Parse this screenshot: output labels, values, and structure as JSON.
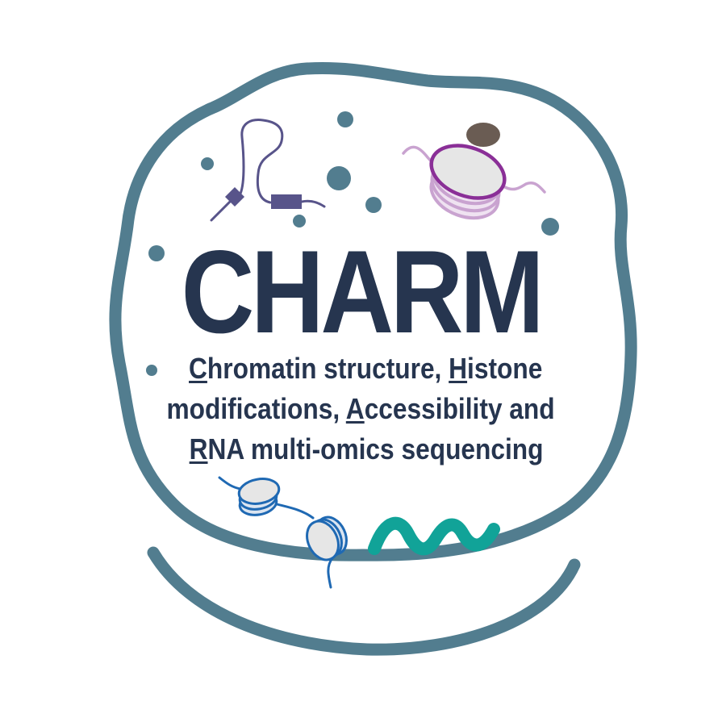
{
  "logo": {
    "title": "CHARM",
    "subtitle_lines": [
      [
        {
          "initial": "C",
          "rest": "hromatin structure, "
        },
        {
          "initial": "H",
          "rest": "istone"
        }
      ],
      [
        {
          "plain": "modifications, "
        },
        {
          "initial": "A",
          "rest": "ccessibility and"
        }
      ],
      [
        {
          "initial": "R",
          "rest": "NA multi-omics sequencing"
        }
      ]
    ]
  },
  "colors": {
    "nucleus_outline": "#527d8f",
    "text": "#26354f",
    "antibody_probe": "#58548a",
    "modified_nucleosome": "#8a2f97",
    "histone_mark": "#6a5c53",
    "chromatin_fiber": "#1f69b3",
    "rna": "#11a398",
    "nucleosome_fill": "#e6e6e6"
  },
  "icons": [
    "nucleus-outline-icon",
    "antibody-probe-icon",
    "modified-nucleosome-icon",
    "histone-mark-icon",
    "chromatin-fiber-icon",
    "rna-strand-icon",
    "particle-dot-icon"
  ]
}
